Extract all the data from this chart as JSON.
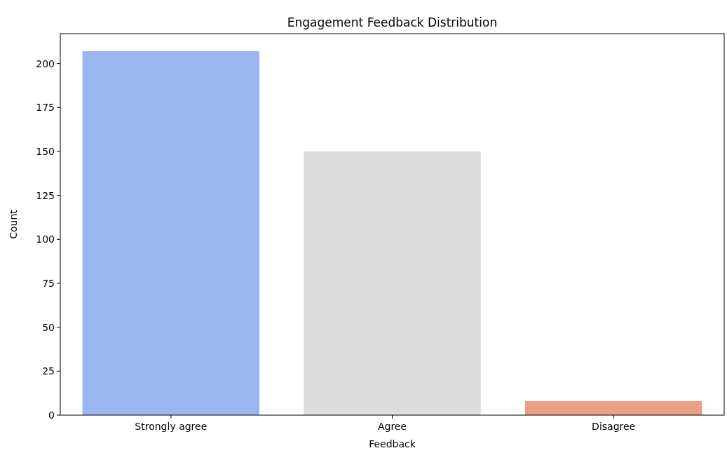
{
  "chart_data": {
    "type": "bar",
    "title": "Engagement Feedback Distribution",
    "xlabel": "Feedback",
    "ylabel": "Count",
    "categories": [
      "Strongly agree",
      "Agree",
      "Disagree"
    ],
    "values": [
      207,
      150,
      8
    ],
    "colors": [
      "#9ab5f0",
      "#dcdcdc",
      "#e8a087"
    ],
    "ylim": [
      0,
      217
    ],
    "yticks": [
      0,
      25,
      50,
      75,
      100,
      125,
      150,
      175,
      200
    ],
    "grid": false
  }
}
